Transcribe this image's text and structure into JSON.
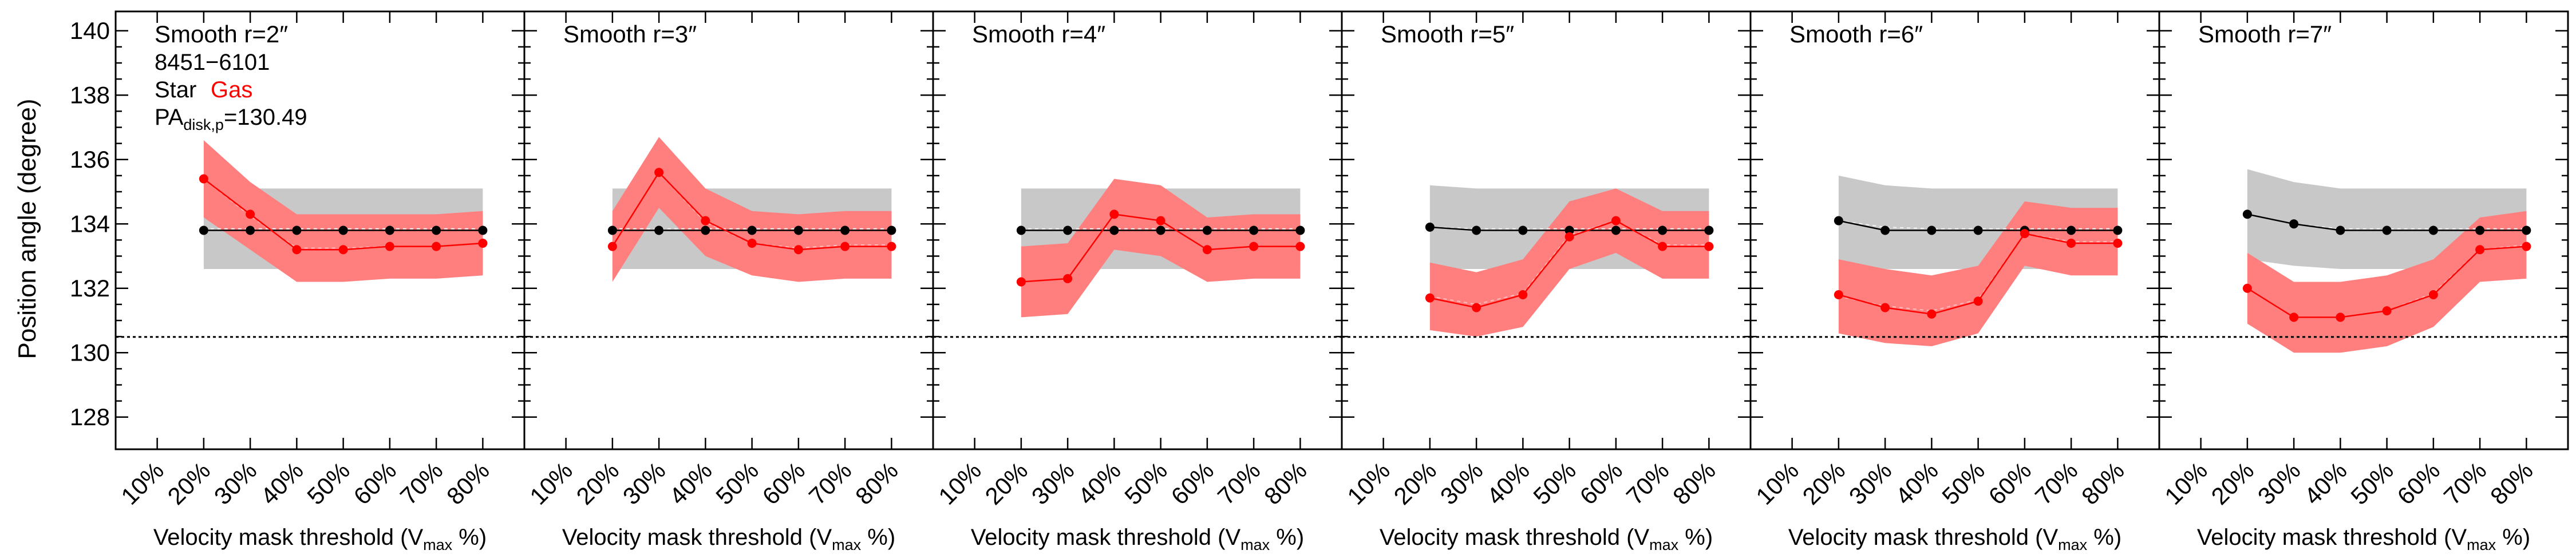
{
  "y_axis_label": "Position angle (degree)",
  "x_axis_label_main": "Velocity mask threshold (V",
  "x_axis_label_sub": "max",
  "x_axis_label_end": " %)",
  "legend": {
    "galaxy_id": "8451−6101",
    "star_label": "Star",
    "gas_label": "Gas",
    "pa_prefix": "PA",
    "pa_sub": "disk,p",
    "pa_value": "=130.49"
  },
  "colors": {
    "star": "#000000",
    "gas": "#ff0000",
    "gas_band": "#ff7f7f",
    "star_band": "#c8c8c8"
  },
  "chart_data": [
    {
      "type": "line",
      "title": "Smooth r=2″",
      "categories": [
        "10%",
        "20%",
        "30%",
        "40%",
        "50%",
        "60%",
        "70%",
        "80%"
      ],
      "ylim": [
        127,
        140.6
      ],
      "yticks": [
        128,
        130,
        132,
        134,
        136,
        138,
        140
      ],
      "reference_line": 130.49,
      "series": [
        {
          "name": "Star",
          "x": [
            20,
            30,
            40,
            50,
            60,
            70,
            80
          ],
          "values": [
            133.8,
            133.8,
            133.8,
            133.8,
            133.8,
            133.8,
            133.8
          ],
          "lower": [
            132.6,
            132.6,
            132.6,
            132.6,
            132.6,
            132.6,
            132.6
          ],
          "upper": [
            135.1,
            135.1,
            135.1,
            135.1,
            135.1,
            135.1,
            135.1
          ]
        },
        {
          "name": "Gas",
          "x": [
            20,
            30,
            40,
            50,
            60,
            70,
            80
          ],
          "values": [
            135.4,
            134.3,
            133.2,
            133.2,
            133.3,
            133.3,
            133.4
          ],
          "lower": [
            134.2,
            133.2,
            132.2,
            132.2,
            132.3,
            132.3,
            132.4
          ],
          "upper": [
            136.6,
            135.3,
            134.3,
            134.3,
            134.3,
            134.3,
            134.4
          ]
        }
      ]
    },
    {
      "type": "line",
      "title": "Smooth r=3″",
      "categories": [
        "10%",
        "20%",
        "30%",
        "40%",
        "50%",
        "60%",
        "70%",
        "80%"
      ],
      "ylim": [
        127,
        140.6
      ],
      "reference_line": 130.49,
      "series": [
        {
          "name": "Star",
          "x": [
            20,
            30,
            40,
            50,
            60,
            70,
            80
          ],
          "values": [
            133.8,
            133.8,
            133.8,
            133.8,
            133.8,
            133.8,
            133.8
          ],
          "lower": [
            132.6,
            132.6,
            132.6,
            132.6,
            132.6,
            132.6,
            132.6
          ],
          "upper": [
            135.1,
            135.1,
            135.1,
            135.1,
            135.1,
            135.1,
            135.1
          ]
        },
        {
          "name": "Gas",
          "x": [
            20,
            30,
            40,
            50,
            60,
            70,
            80
          ],
          "values": [
            133.3,
            135.6,
            134.1,
            133.4,
            133.2,
            133.3,
            133.3
          ],
          "lower": [
            132.2,
            134.5,
            133.0,
            132.4,
            132.2,
            132.3,
            132.3
          ],
          "upper": [
            134.4,
            136.7,
            135.1,
            134.4,
            134.3,
            134.4,
            134.4
          ]
        }
      ]
    },
    {
      "type": "line",
      "title": "Smooth r=4″",
      "categories": [
        "10%",
        "20%",
        "30%",
        "40%",
        "50%",
        "60%",
        "70%",
        "80%"
      ],
      "ylim": [
        127,
        140.6
      ],
      "reference_line": 130.49,
      "series": [
        {
          "name": "Star",
          "x": [
            20,
            30,
            40,
            50,
            60,
            70,
            80
          ],
          "values": [
            133.8,
            133.8,
            133.8,
            133.8,
            133.8,
            133.8,
            133.8
          ],
          "lower": [
            132.6,
            132.6,
            132.6,
            132.6,
            132.6,
            132.6,
            132.6
          ],
          "upper": [
            135.1,
            135.1,
            135.1,
            135.1,
            135.1,
            135.1,
            135.1
          ]
        },
        {
          "name": "Gas",
          "x": [
            20,
            30,
            40,
            50,
            60,
            70,
            80
          ],
          "values": [
            132.2,
            132.3,
            134.3,
            134.1,
            133.2,
            133.3,
            133.3
          ],
          "lower": [
            131.1,
            131.2,
            133.2,
            133.0,
            132.2,
            132.3,
            132.3
          ],
          "upper": [
            133.3,
            133.4,
            135.4,
            135.2,
            134.2,
            134.3,
            134.3
          ]
        }
      ]
    },
    {
      "type": "line",
      "title": "Smooth r=5″",
      "categories": [
        "10%",
        "20%",
        "30%",
        "40%",
        "50%",
        "60%",
        "70%",
        "80%"
      ],
      "ylim": [
        127,
        140.6
      ],
      "reference_line": 130.49,
      "series": [
        {
          "name": "Star",
          "x": [
            20,
            30,
            40,
            50,
            60,
            70,
            80
          ],
          "values": [
            133.9,
            133.8,
            133.8,
            133.8,
            133.8,
            133.8,
            133.8
          ],
          "lower": [
            132.6,
            132.6,
            132.6,
            132.6,
            132.6,
            132.6,
            132.6
          ],
          "upper": [
            135.2,
            135.1,
            135.1,
            135.1,
            135.1,
            135.1,
            135.1
          ]
        },
        {
          "name": "Gas",
          "x": [
            20,
            30,
            40,
            50,
            60,
            70,
            80
          ],
          "values": [
            131.7,
            131.4,
            131.8,
            133.6,
            134.1,
            133.3,
            133.3
          ],
          "lower": [
            130.7,
            130.5,
            130.8,
            132.6,
            133.1,
            132.3,
            132.3
          ],
          "upper": [
            132.8,
            132.5,
            132.9,
            134.7,
            135.1,
            134.4,
            134.4
          ]
        }
      ]
    },
    {
      "type": "line",
      "title": "Smooth r=6″",
      "categories": [
        "10%",
        "20%",
        "30%",
        "40%",
        "50%",
        "60%",
        "70%",
        "80%"
      ],
      "ylim": [
        127,
        140.6
      ],
      "reference_line": 130.49,
      "series": [
        {
          "name": "Star",
          "x": [
            20,
            30,
            40,
            50,
            60,
            70,
            80
          ],
          "values": [
            134.1,
            133.8,
            133.8,
            133.8,
            133.8,
            133.8,
            133.8
          ],
          "lower": [
            132.7,
            132.6,
            132.6,
            132.6,
            132.6,
            132.6,
            132.6
          ],
          "upper": [
            135.5,
            135.2,
            135.1,
            135.1,
            135.1,
            135.1,
            135.1
          ]
        },
        {
          "name": "Gas",
          "x": [
            20,
            30,
            40,
            50,
            60,
            70,
            80
          ],
          "values": [
            131.8,
            131.4,
            131.2,
            131.6,
            133.7,
            133.4,
            133.4
          ],
          "lower": [
            130.6,
            130.3,
            130.2,
            130.6,
            132.7,
            132.4,
            132.4
          ],
          "upper": [
            132.9,
            132.6,
            132.4,
            132.7,
            134.7,
            134.5,
            134.5
          ]
        }
      ]
    },
    {
      "type": "line",
      "title": "Smooth r=7″",
      "categories": [
        "10%",
        "20%",
        "30%",
        "40%",
        "50%",
        "60%",
        "70%",
        "80%"
      ],
      "ylim": [
        127,
        140.6
      ],
      "reference_line": 130.49,
      "series": [
        {
          "name": "Star",
          "x": [
            20,
            30,
            40,
            50,
            60,
            70,
            80
          ],
          "values": [
            134.3,
            134.0,
            133.8,
            133.8,
            133.8,
            133.8,
            133.8
          ],
          "lower": [
            132.9,
            132.7,
            132.6,
            132.6,
            132.6,
            132.6,
            132.6
          ],
          "upper": [
            135.7,
            135.3,
            135.1,
            135.1,
            135.1,
            135.1,
            135.1
          ]
        },
        {
          "name": "Gas",
          "x": [
            20,
            30,
            40,
            50,
            60,
            70,
            80
          ],
          "values": [
            132.0,
            131.1,
            131.1,
            131.3,
            131.8,
            133.2,
            133.3
          ],
          "lower": [
            130.9,
            130.0,
            130.0,
            130.2,
            130.8,
            132.2,
            132.3
          ],
          "upper": [
            133.1,
            132.2,
            132.2,
            132.4,
            132.9,
            134.2,
            134.4
          ]
        }
      ]
    }
  ]
}
